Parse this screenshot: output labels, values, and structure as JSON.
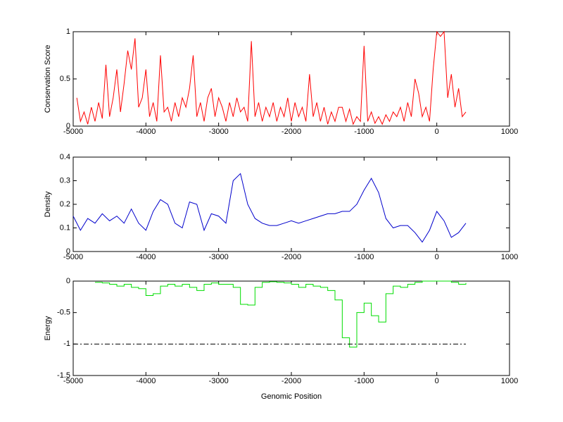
{
  "chart_data": [
    {
      "type": "line",
      "ylabel": "Conservation Score",
      "xlim": [
        -5000,
        1000
      ],
      "xticks": [
        -5000,
        -4000,
        -3000,
        -2000,
        -1000,
        0,
        1000
      ],
      "ylim": [
        0,
        1
      ],
      "yticks": [
        0,
        0.5,
        1
      ],
      "series": [
        {
          "color": "#ff0000",
          "x": [
            -4950,
            -4900,
            -4850,
            -4800,
            -4750,
            -4700,
            -4650,
            -4600,
            -4550,
            -4500,
            -4450,
            -4400,
            -4350,
            -4300,
            -4250,
            -4200,
            -4150,
            -4100,
            -4050,
            -4000,
            -3950,
            -3900,
            -3850,
            -3800,
            -3750,
            -3700,
            -3650,
            -3600,
            -3550,
            -3500,
            -3450,
            -3400,
            -3350,
            -3300,
            -3250,
            -3200,
            -3150,
            -3100,
            -3050,
            -3000,
            -2950,
            -2900,
            -2850,
            -2800,
            -2750,
            -2700,
            -2650,
            -2600,
            -2550,
            -2500,
            -2450,
            -2400,
            -2350,
            -2300,
            -2250,
            -2200,
            -2150,
            -2100,
            -2050,
            -2000,
            -1950,
            -1900,
            -1850,
            -1800,
            -1750,
            -1700,
            -1650,
            -1600,
            -1550,
            -1500,
            -1450,
            -1400,
            -1350,
            -1300,
            -1250,
            -1200,
            -1150,
            -1100,
            -1050,
            -1000,
            -950,
            -900,
            -850,
            -800,
            -750,
            -700,
            -650,
            -600,
            -550,
            -500,
            -450,
            -400,
            -350,
            -300,
            -250,
            -200,
            -150,
            -100,
            -50,
            0,
            50,
            100,
            150,
            200,
            250,
            300,
            350,
            400
          ],
          "values": [
            0.3,
            0.05,
            0.15,
            0.02,
            0.2,
            0.05,
            0.25,
            0.08,
            0.65,
            0.1,
            0.3,
            0.6,
            0.15,
            0.45,
            0.8,
            0.6,
            0.93,
            0.2,
            0.3,
            0.6,
            0.1,
            0.25,
            0.05,
            0.75,
            0.15,
            0.2,
            0.05,
            0.25,
            0.1,
            0.3,
            0.2,
            0.4,
            0.75,
            0.1,
            0.25,
            0.05,
            0.3,
            0.4,
            0.1,
            0.3,
            0.2,
            0.05,
            0.25,
            0.1,
            0.3,
            0.15,
            0.2,
            0.05,
            0.9,
            0.1,
            0.25,
            0.05,
            0.2,
            0.1,
            0.25,
            0.05,
            0.2,
            0.1,
            0.3,
            0.05,
            0.25,
            0.1,
            0.2,
            0.05,
            0.55,
            0.1,
            0.25,
            0.05,
            0.2,
            0.02,
            0.15,
            0.05,
            0.2,
            0.2,
            0.05,
            0.18,
            0.02,
            0.1,
            0.05,
            0.85,
            0.05,
            0.15,
            0.03,
            0.1,
            0.02,
            0.12,
            0.05,
            0.15,
            0.1,
            0.2,
            0.05,
            0.25,
            0.1,
            0.5,
            0.35,
            0.1,
            0.2,
            0.05,
            0.6,
            1,
            0.95,
            1,
            0.3,
            0.55,
            0.2,
            0.4,
            0.1,
            0.15
          ]
        }
      ]
    },
    {
      "type": "line",
      "ylabel": "Density",
      "xlim": [
        -5000,
        1000
      ],
      "xticks": [
        -5000,
        -4000,
        -3000,
        -2000,
        -1000,
        0,
        1000
      ],
      "ylim": [
        0,
        0.4
      ],
      "yticks": [
        0,
        0.1,
        0.2,
        0.3,
        0.4
      ],
      "series": [
        {
          "color": "#0000cc",
          "x": [
            -5000,
            -4900,
            -4800,
            -4700,
            -4600,
            -4500,
            -4400,
            -4300,
            -4200,
            -4100,
            -4000,
            -3900,
            -3800,
            -3700,
            -3600,
            -3500,
            -3400,
            -3300,
            -3200,
            -3100,
            -3000,
            -2900,
            -2800,
            -2700,
            -2600,
            -2500,
            -2400,
            -2300,
            -2200,
            -2100,
            -2000,
            -1900,
            -1800,
            -1700,
            -1600,
            -1500,
            -1400,
            -1300,
            -1200,
            -1100,
            -1000,
            -900,
            -800,
            -700,
            -600,
            -500,
            -400,
            -300,
            -200,
            -100,
            0,
            100,
            200,
            300,
            400
          ],
          "values": [
            0.15,
            0.09,
            0.14,
            0.12,
            0.16,
            0.13,
            0.15,
            0.12,
            0.18,
            0.12,
            0.09,
            0.17,
            0.22,
            0.2,
            0.12,
            0.1,
            0.21,
            0.2,
            0.09,
            0.16,
            0.15,
            0.12,
            0.3,
            0.33,
            0.2,
            0.14,
            0.12,
            0.11,
            0.11,
            0.12,
            0.13,
            0.12,
            0.13,
            0.14,
            0.15,
            0.16,
            0.16,
            0.17,
            0.17,
            0.2,
            0.26,
            0.31,
            0.25,
            0.14,
            0.1,
            0.11,
            0.11,
            0.08,
            0.04,
            0.09,
            0.17,
            0.13,
            0.06,
            0.08,
            0.12
          ]
        }
      ]
    },
    {
      "type": "step",
      "ylabel": "Energy",
      "xlabel": "Genomic Position",
      "xlim": [
        -5000,
        1000
      ],
      "xticks": [
        -5000,
        -4000,
        -3000,
        -2000,
        -1000,
        0,
        1000
      ],
      "ylim": [
        -1.5,
        0
      ],
      "yticks": [
        -1.5,
        -1,
        -0.5,
        0
      ],
      "series": [
        {
          "color": "#00dd00",
          "x": [
            -4700,
            -4600,
            -4500,
            -4400,
            -4300,
            -4200,
            -4100,
            -4000,
            -3900,
            -3800,
            -3700,
            -3600,
            -3500,
            -3400,
            -3300,
            -3200,
            -3100,
            -3000,
            -2900,
            -2800,
            -2700,
            -2600,
            -2500,
            -2400,
            -2300,
            -2200,
            -2100,
            -2000,
            -1900,
            -1800,
            -1700,
            -1600,
            -1500,
            -1400,
            -1300,
            -1200,
            -1100,
            -1000,
            -900,
            -800,
            -700,
            -600,
            -500,
            -400,
            -300,
            -200,
            -100,
            0,
            100,
            200,
            300,
            400
          ],
          "values": [
            -0.02,
            -0.03,
            -0.05,
            -0.08,
            -0.05,
            -0.1,
            -0.12,
            -0.23,
            -0.2,
            -0.08,
            -0.05,
            -0.08,
            -0.05,
            -0.1,
            -0.15,
            -0.05,
            -0.03,
            -0.05,
            -0.05,
            -0.1,
            -0.37,
            -0.38,
            -0.1,
            -0.02,
            -0.01,
            -0.02,
            -0.03,
            -0.05,
            -0.1,
            -0.05,
            -0.08,
            -0.1,
            -0.15,
            -0.3,
            -0.9,
            -1.05,
            -0.5,
            -0.35,
            -0.55,
            -0.65,
            -0.2,
            -0.08,
            -0.1,
            -0.05,
            -0.02,
            0,
            0,
            0,
            0,
            -0.02,
            -0.05,
            -0.03
          ]
        }
      ],
      "reference_line": {
        "y": -1,
        "x": [
          -5000,
          400
        ],
        "color": "#000000",
        "dash": "dash-dot"
      }
    }
  ]
}
